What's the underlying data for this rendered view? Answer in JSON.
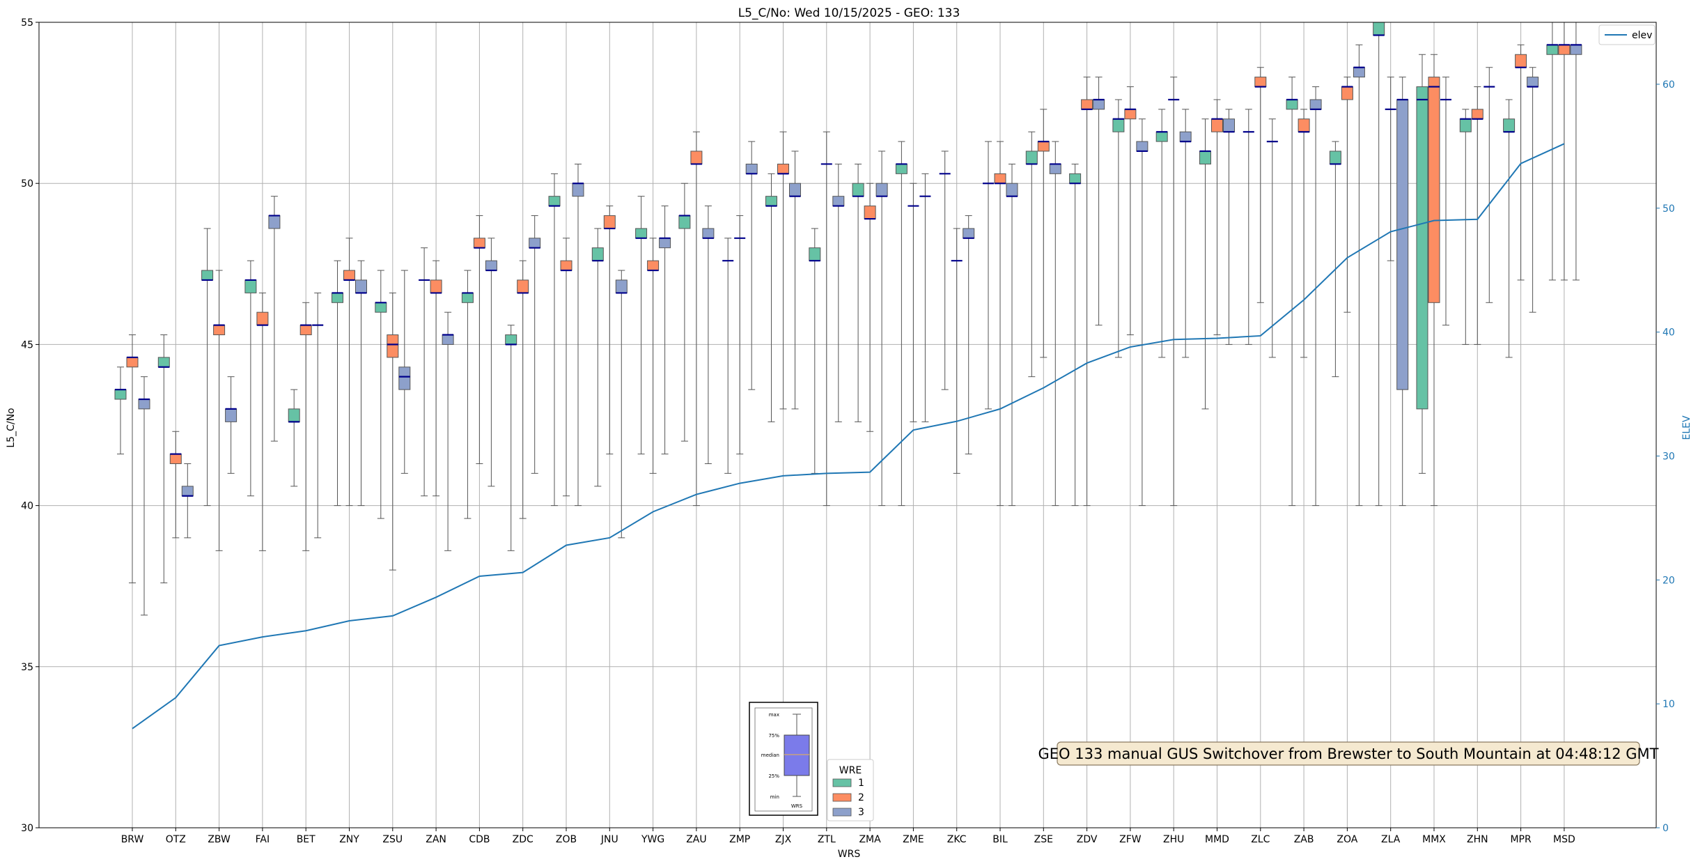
{
  "chart_data": {
    "type": "box",
    "title": "L5_C/No: Wed 10/15/2025 - GEO: 133",
    "xlabel": "WRS",
    "ylabel": "L5_C/No",
    "y2label": "ELEV",
    "ylim": [
      30,
      55
    ],
    "y2lim": [
      0,
      65
    ],
    "yticks": [
      30,
      35,
      40,
      45,
      50,
      55
    ],
    "y2ticks": [
      0,
      10,
      20,
      30,
      40,
      50,
      60
    ],
    "grid": true,
    "categories": [
      "BRW",
      "OTZ",
      "ZBW",
      "FAI",
      "BET",
      "ZNY",
      "ZSU",
      "ZAN",
      "CDB",
      "ZDC",
      "ZOB",
      "JNU",
      "YWG",
      "ZAU",
      "ZMP",
      "ZJX",
      "ZTL",
      "ZMA",
      "ZME",
      "ZKC",
      "BIL",
      "ZSE",
      "ZDV",
      "ZFW",
      "ZHU",
      "MMD",
      "ZLC",
      "ZAB",
      "ZOA",
      "ZLA",
      "MMX",
      "ZHN",
      "MPR",
      "MSD"
    ],
    "wre_legend": {
      "title": "WRE",
      "entries": [
        {
          "name": "1",
          "color": "#66c2a5"
        },
        {
          "name": "2",
          "color": "#fc8d62"
        },
        {
          "name": "3",
          "color": "#8da0cb"
        }
      ]
    },
    "elev_legend": {
      "name": "elev",
      "color": "#1f77b4"
    },
    "elevation": [
      8,
      10.5,
      14.7,
      15.4,
      15.9,
      16.7,
      17.1,
      18.6,
      20.3,
      20.6,
      22.8,
      23.4,
      25.5,
      26.9,
      27.8,
      28.4,
      28.6,
      28.7,
      32.1,
      32.8,
      33.8,
      35.5,
      37.5,
      38.8,
      39.4,
      39.5,
      39.7,
      42.6,
      46,
      48.1,
      49,
      49.1,
      53.6,
      55.2
    ],
    "boxes": [
      {
        "cat": "BRW",
        "wre": "1",
        "min": 41.6,
        "q1": 43.3,
        "median": 43.6,
        "q3": 43.6,
        "max": 44.3
      },
      {
        "cat": "BRW",
        "wre": "2",
        "min": 37.6,
        "q1": 44.3,
        "median": 44.6,
        "q3": 44.6,
        "max": 45.3
      },
      {
        "cat": "BRW",
        "wre": "3",
        "min": 36.6,
        "q1": 43.0,
        "median": 43.3,
        "q3": 43.3,
        "max": 44.0
      },
      {
        "cat": "OTZ",
        "wre": "1",
        "min": 37.6,
        "q1": 44.3,
        "median": 44.3,
        "q3": 44.6,
        "max": 45.3
      },
      {
        "cat": "OTZ",
        "wre": "2",
        "min": 39.0,
        "q1": 41.3,
        "median": 41.6,
        "q3": 41.6,
        "max": 42.3
      },
      {
        "cat": "OTZ",
        "wre": "3",
        "min": 39.0,
        "q1": 40.3,
        "median": 40.3,
        "q3": 40.6,
        "max": 41.3
      },
      {
        "cat": "ZBW",
        "wre": "1",
        "min": 40.0,
        "q1": 47.0,
        "median": 47.0,
        "q3": 47.3,
        "max": 48.6
      },
      {
        "cat": "ZBW",
        "wre": "2",
        "min": 38.6,
        "q1": 45.3,
        "median": 45.6,
        "q3": 45.6,
        "max": 47.3
      },
      {
        "cat": "ZBW",
        "wre": "3",
        "min": 41.0,
        "q1": 42.6,
        "median": 43.0,
        "q3": 43.0,
        "max": 44.0
      },
      {
        "cat": "FAI",
        "wre": "1",
        "min": 40.3,
        "q1": 46.6,
        "median": 47.0,
        "q3": 47.0,
        "max": 47.6
      },
      {
        "cat": "FAI",
        "wre": "2",
        "min": 38.6,
        "q1": 45.6,
        "median": 45.6,
        "q3": 46.0,
        "max": 46.6
      },
      {
        "cat": "FAI",
        "wre": "3",
        "min": 42.0,
        "q1": 48.6,
        "median": 49.0,
        "q3": 49.0,
        "max": 49.6
      },
      {
        "cat": "BET",
        "wre": "1",
        "min": 40.6,
        "q1": 42.6,
        "median": 42.6,
        "q3": 43.0,
        "max": 43.6
      },
      {
        "cat": "BET",
        "wre": "2",
        "min": 38.6,
        "q1": 45.3,
        "median": 45.6,
        "q3": 45.6,
        "max": 46.3
      },
      {
        "cat": "BET",
        "wre": "3",
        "min": 39.0,
        "q1": 45.6,
        "median": 45.6,
        "q3": 45.6,
        "max": 46.6
      },
      {
        "cat": "ZNY",
        "wre": "1",
        "min": 40.0,
        "q1": 46.3,
        "median": 46.6,
        "q3": 46.6,
        "max": 47.6
      },
      {
        "cat": "ZNY",
        "wre": "2",
        "min": 40.0,
        "q1": 47.0,
        "median": 47.0,
        "q3": 47.3,
        "max": 48.3
      },
      {
        "cat": "ZNY",
        "wre": "3",
        "min": 40.0,
        "q1": 46.6,
        "median": 46.6,
        "q3": 47.0,
        "max": 47.6
      },
      {
        "cat": "ZSU",
        "wre": "1",
        "min": 39.6,
        "q1": 46.0,
        "median": 46.3,
        "q3": 46.3,
        "max": 47.3
      },
      {
        "cat": "ZSU",
        "wre": "2",
        "min": 38.0,
        "q1": 44.6,
        "median": 45.0,
        "q3": 45.3,
        "max": 46.6
      },
      {
        "cat": "ZSU",
        "wre": "3",
        "min": 41.0,
        "q1": 43.6,
        "median": 44.0,
        "q3": 44.3,
        "max": 47.3
      },
      {
        "cat": "ZAN",
        "wre": "1",
        "min": 40.3,
        "q1": 47.0,
        "median": 47.0,
        "q3": 47.0,
        "max": 48.0
      },
      {
        "cat": "ZAN",
        "wre": "2",
        "min": 40.3,
        "q1": 46.6,
        "median": 46.6,
        "q3": 47.0,
        "max": 47.6
      },
      {
        "cat": "ZAN",
        "wre": "3",
        "min": 38.6,
        "q1": 45.0,
        "median": 45.3,
        "q3": 45.3,
        "max": 46.0
      },
      {
        "cat": "CDB",
        "wre": "1",
        "min": 39.6,
        "q1": 46.3,
        "median": 46.6,
        "q3": 46.6,
        "max": 47.3
      },
      {
        "cat": "CDB",
        "wre": "2",
        "min": 41.3,
        "q1": 48.0,
        "median": 48.0,
        "q3": 48.3,
        "max": 49.0
      },
      {
        "cat": "CDB",
        "wre": "3",
        "min": 40.6,
        "q1": 47.3,
        "median": 47.3,
        "q3": 47.6,
        "max": 48.3
      },
      {
        "cat": "ZDC",
        "wre": "1",
        "min": 38.6,
        "q1": 45.0,
        "median": 45.0,
        "q3": 45.3,
        "max": 45.6
      },
      {
        "cat": "ZDC",
        "wre": "2",
        "min": 39.6,
        "q1": 46.6,
        "median": 46.6,
        "q3": 47.0,
        "max": 47.6
      },
      {
        "cat": "ZDC",
        "wre": "3",
        "min": 41.0,
        "q1": 48.0,
        "median": 48.0,
        "q3": 48.3,
        "max": 49.0
      },
      {
        "cat": "ZOB",
        "wre": "1",
        "min": 40.0,
        "q1": 49.3,
        "median": 49.3,
        "q3": 49.6,
        "max": 50.3
      },
      {
        "cat": "ZOB",
        "wre": "2",
        "min": 40.3,
        "q1": 47.3,
        "median": 47.3,
        "q3": 47.6,
        "max": 48.3
      },
      {
        "cat": "ZOB",
        "wre": "3",
        "min": 40.0,
        "q1": 49.6,
        "median": 50.0,
        "q3": 50.0,
        "max": 50.6
      },
      {
        "cat": "JNU",
        "wre": "1",
        "min": 40.6,
        "q1": 47.6,
        "median": 47.6,
        "q3": 48.0,
        "max": 48.6
      },
      {
        "cat": "JNU",
        "wre": "2",
        "min": 41.6,
        "q1": 48.6,
        "median": 48.6,
        "q3": 49.0,
        "max": 49.3
      },
      {
        "cat": "JNU",
        "wre": "3",
        "min": 39.0,
        "q1": 46.6,
        "median": 46.6,
        "q3": 47.0,
        "max": 47.3
      },
      {
        "cat": "YWG",
        "wre": "1",
        "min": 41.6,
        "q1": 48.3,
        "median": 48.3,
        "q3": 48.6,
        "max": 49.6
      },
      {
        "cat": "YWG",
        "wre": "2",
        "min": 41.0,
        "q1": 47.3,
        "median": 47.3,
        "q3": 47.6,
        "max": 48.3
      },
      {
        "cat": "YWG",
        "wre": "3",
        "min": 41.6,
        "q1": 48.0,
        "median": 48.3,
        "q3": 48.3,
        "max": 49.3
      },
      {
        "cat": "ZAU",
        "wre": "1",
        "min": 42.0,
        "q1": 48.6,
        "median": 49.0,
        "q3": 49.0,
        "max": 50.0
      },
      {
        "cat": "ZAU",
        "wre": "2",
        "min": 40.0,
        "q1": 50.6,
        "median": 50.6,
        "q3": 51.0,
        "max": 51.6
      },
      {
        "cat": "ZAU",
        "wre": "3",
        "min": 41.3,
        "q1": 48.3,
        "median": 48.3,
        "q3": 48.6,
        "max": 49.3
      },
      {
        "cat": "ZMP",
        "wre": "1",
        "min": 41.0,
        "q1": 47.6,
        "median": 47.6,
        "q3": 47.6,
        "max": 48.3
      },
      {
        "cat": "ZMP",
        "wre": "2",
        "min": 41.6,
        "q1": 48.3,
        "median": 48.3,
        "q3": 48.3,
        "max": 49.0
      },
      {
        "cat": "ZMP",
        "wre": "3",
        "min": 43.6,
        "q1": 50.3,
        "median": 50.3,
        "q3": 50.6,
        "max": 51.3
      },
      {
        "cat": "ZJX",
        "wre": "1",
        "min": 42.6,
        "q1": 49.3,
        "median": 49.3,
        "q3": 49.6,
        "max": 50.3
      },
      {
        "cat": "ZJX",
        "wre": "2",
        "min": 43.0,
        "q1": 50.3,
        "median": 50.3,
        "q3": 50.6,
        "max": 51.6
      },
      {
        "cat": "ZJX",
        "wre": "3",
        "min": 43.0,
        "q1": 49.6,
        "median": 49.6,
        "q3": 50.0,
        "max": 51.0
      },
      {
        "cat": "ZTL",
        "wre": "1",
        "min": 41.0,
        "q1": 47.6,
        "median": 47.6,
        "q3": 48.0,
        "max": 48.6
      },
      {
        "cat": "ZTL",
        "wre": "2",
        "min": 40.0,
        "q1": 50.6,
        "median": 50.6,
        "q3": 50.6,
        "max": 51.6
      },
      {
        "cat": "ZTL",
        "wre": "3",
        "min": 42.6,
        "q1": 49.3,
        "median": 49.3,
        "q3": 49.6,
        "max": 50.6
      },
      {
        "cat": "ZMA",
        "wre": "1",
        "min": 42.6,
        "q1": 49.6,
        "median": 49.6,
        "q3": 50.0,
        "max": 50.6
      },
      {
        "cat": "ZMA",
        "wre": "2",
        "min": 42.3,
        "q1": 48.9,
        "median": 48.9,
        "q3": 49.3,
        "max": 50.0
      },
      {
        "cat": "ZMA",
        "wre": "3",
        "min": 40.0,
        "q1": 49.6,
        "median": 49.6,
        "q3": 50.0,
        "max": 51.0
      },
      {
        "cat": "ZME",
        "wre": "1",
        "min": 40.0,
        "q1": 50.3,
        "median": 50.6,
        "q3": 50.6,
        "max": 51.3
      },
      {
        "cat": "ZME",
        "wre": "2",
        "min": 42.6,
        "q1": 49.3,
        "median": 49.3,
        "q3": 49.3,
        "max": 50.0
      },
      {
        "cat": "ZME",
        "wre": "3",
        "min": 42.6,
        "q1": 49.6,
        "median": 49.6,
        "q3": 49.6,
        "max": 50.3
      },
      {
        "cat": "ZKC",
        "wre": "1",
        "min": 43.6,
        "q1": 50.3,
        "median": 50.3,
        "q3": 50.3,
        "max": 51.0
      },
      {
        "cat": "ZKC",
        "wre": "2",
        "min": 41.0,
        "q1": 47.6,
        "median": 47.6,
        "q3": 47.6,
        "max": 48.6
      },
      {
        "cat": "ZKC",
        "wre": "3",
        "min": 41.6,
        "q1": 48.3,
        "median": 48.3,
        "q3": 48.6,
        "max": 49.0
      },
      {
        "cat": "BIL",
        "wre": "1",
        "min": 43.0,
        "q1": 50.0,
        "median": 50.0,
        "q3": 50.0,
        "max": 51.3
      },
      {
        "cat": "BIL",
        "wre": "2",
        "min": 40.0,
        "q1": 50.0,
        "median": 50.0,
        "q3": 50.3,
        "max": 51.3
      },
      {
        "cat": "BIL",
        "wre": "3",
        "min": 40.0,
        "q1": 49.6,
        "median": 49.6,
        "q3": 50.0,
        "max": 50.6
      },
      {
        "cat": "ZSE",
        "wre": "1",
        "min": 44.0,
        "q1": 50.6,
        "median": 50.6,
        "q3": 51.0,
        "max": 51.6
      },
      {
        "cat": "ZSE",
        "wre": "2",
        "min": 44.6,
        "q1": 51.0,
        "median": 51.3,
        "q3": 51.3,
        "max": 52.3
      },
      {
        "cat": "ZSE",
        "wre": "3",
        "min": 40.0,
        "q1": 50.3,
        "median": 50.6,
        "q3": 50.6,
        "max": 51.3
      },
      {
        "cat": "ZDV",
        "wre": "1",
        "min": 40.0,
        "q1": 50.0,
        "median": 50.0,
        "q3": 50.3,
        "max": 50.6
      },
      {
        "cat": "ZDV",
        "wre": "2",
        "min": 40.0,
        "q1": 52.3,
        "median": 52.3,
        "q3": 52.6,
        "max": 53.3
      },
      {
        "cat": "ZDV",
        "wre": "3",
        "min": 45.6,
        "q1": 52.3,
        "median": 52.6,
        "q3": 52.6,
        "max": 53.3
      },
      {
        "cat": "ZFW",
        "wre": "1",
        "min": 44.6,
        "q1": 51.6,
        "median": 52.0,
        "q3": 52.0,
        "max": 52.6
      },
      {
        "cat": "ZFW",
        "wre": "2",
        "min": 45.3,
        "q1": 52.0,
        "median": 52.3,
        "q3": 52.3,
        "max": 53.0
      },
      {
        "cat": "ZFW",
        "wre": "3",
        "min": 40.0,
        "q1": 51.0,
        "median": 51.0,
        "q3": 51.3,
        "max": 52.0
      },
      {
        "cat": "ZHU",
        "wre": "1",
        "min": 44.6,
        "q1": 51.3,
        "median": 51.6,
        "q3": 51.6,
        "max": 52.3
      },
      {
        "cat": "ZHU",
        "wre": "2",
        "min": 40.0,
        "q1": 52.6,
        "median": 52.6,
        "q3": 52.6,
        "max": 53.3
      },
      {
        "cat": "ZHU",
        "wre": "3",
        "min": 44.6,
        "q1": 51.3,
        "median": 51.3,
        "q3": 51.6,
        "max": 52.3
      },
      {
        "cat": "MMD",
        "wre": "1",
        "min": 43.0,
        "q1": 50.6,
        "median": 51.0,
        "q3": 51.0,
        "max": 52.0
      },
      {
        "cat": "MMD",
        "wre": "2",
        "min": 45.3,
        "q1": 51.6,
        "median": 52.0,
        "q3": 52.0,
        "max": 52.6
      },
      {
        "cat": "MMD",
        "wre": "3",
        "min": 45.0,
        "q1": 51.6,
        "median": 51.6,
        "q3": 52.0,
        "max": 52.3
      },
      {
        "cat": "ZLC",
        "wre": "1",
        "min": 45.0,
        "q1": 51.6,
        "median": 51.6,
        "q3": 51.6,
        "max": 52.3
      },
      {
        "cat": "ZLC",
        "wre": "2",
        "min": 46.3,
        "q1": 53.0,
        "median": 53.0,
        "q3": 53.3,
        "max": 53.6
      },
      {
        "cat": "ZLC",
        "wre": "3",
        "min": 44.6,
        "q1": 51.3,
        "median": 51.3,
        "q3": 51.3,
        "max": 52.0
      },
      {
        "cat": "ZAB",
        "wre": "1",
        "min": 40.0,
        "q1": 52.3,
        "median": 52.6,
        "q3": 52.6,
        "max": 53.3
      },
      {
        "cat": "ZAB",
        "wre": "2",
        "min": 44.6,
        "q1": 51.6,
        "median": 51.6,
        "q3": 52.0,
        "max": 52.3
      },
      {
        "cat": "ZAB",
        "wre": "3",
        "min": 40.0,
        "q1": 52.3,
        "median": 52.3,
        "q3": 52.6,
        "max": 53.0
      },
      {
        "cat": "ZOA",
        "wre": "1",
        "min": 44.0,
        "q1": 50.6,
        "median": 50.6,
        "q3": 51.0,
        "max": 51.3
      },
      {
        "cat": "ZOA",
        "wre": "2",
        "min": 46.0,
        "q1": 52.6,
        "median": 53.0,
        "q3": 53.0,
        "max": 53.3
      },
      {
        "cat": "ZOA",
        "wre": "3",
        "min": 40.0,
        "q1": 53.3,
        "median": 53.6,
        "q3": 53.6,
        "max": 54.3
      },
      {
        "cat": "ZLA",
        "wre": "1",
        "min": 40.0,
        "q1": 54.6,
        "median": 54.6,
        "q3": 55.0,
        "max": 55.0
      },
      {
        "cat": "ZLA",
        "wre": "2",
        "min": 47.6,
        "q1": 52.3,
        "median": 52.3,
        "q3": 52.3,
        "max": 53.3
      },
      {
        "cat": "ZLA",
        "wre": "3",
        "min": 40.0,
        "q1": 43.6,
        "median": 52.6,
        "q3": 52.6,
        "max": 53.3
      },
      {
        "cat": "MMX",
        "wre": "1",
        "min": 41.0,
        "q1": 43.0,
        "median": 52.6,
        "q3": 53.0,
        "max": 54.0
      },
      {
        "cat": "MMX",
        "wre": "2",
        "min": 40.0,
        "q1": 46.3,
        "median": 53.0,
        "q3": 53.3,
        "max": 54.0
      },
      {
        "cat": "MMX",
        "wre": "3",
        "min": 45.6,
        "q1": 52.6,
        "median": 52.6,
        "q3": 52.6,
        "max": 53.3
      },
      {
        "cat": "ZHN",
        "wre": "1",
        "min": 45.0,
        "q1": 51.6,
        "median": 52.0,
        "q3": 52.0,
        "max": 52.3
      },
      {
        "cat": "ZHN",
        "wre": "2",
        "min": 45.0,
        "q1": 52.0,
        "median": 52.0,
        "q3": 52.3,
        "max": 53.0
      },
      {
        "cat": "ZHN",
        "wre": "3",
        "min": 46.3,
        "q1": 53.0,
        "median": 53.0,
        "q3": 53.0,
        "max": 53.6
      },
      {
        "cat": "MPR",
        "wre": "1",
        "min": 44.6,
        "q1": 51.6,
        "median": 51.6,
        "q3": 52.0,
        "max": 52.6
      },
      {
        "cat": "MPR",
        "wre": "2",
        "min": 47.0,
        "q1": 53.6,
        "median": 53.6,
        "q3": 54.0,
        "max": 54.3
      },
      {
        "cat": "MPR",
        "wre": "3",
        "min": 46.0,
        "q1": 53.0,
        "median": 53.0,
        "q3": 53.3,
        "max": 53.6
      },
      {
        "cat": "MSD",
        "wre": "1",
        "min": 47.0,
        "q1": 54.0,
        "median": 54.3,
        "q3": 54.3,
        "max": 55.0
      },
      {
        "cat": "MSD",
        "wre": "2",
        "min": 47.0,
        "q1": 54.0,
        "median": 54.3,
        "q3": 54.3,
        "max": 55.0
      },
      {
        "cat": "MSD",
        "wre": "3",
        "min": 47.0,
        "q1": 54.0,
        "median": 54.3,
        "q3": 54.3,
        "max": 55.0
      }
    ],
    "box_key": {
      "labels": [
        "max",
        "75%",
        "median",
        "25%",
        "min"
      ],
      "xlabel": "WRS"
    },
    "annotation": "GEO 133 manual GUS Switchover from Brewster to South Mountain at 04:48:12 GMT"
  }
}
